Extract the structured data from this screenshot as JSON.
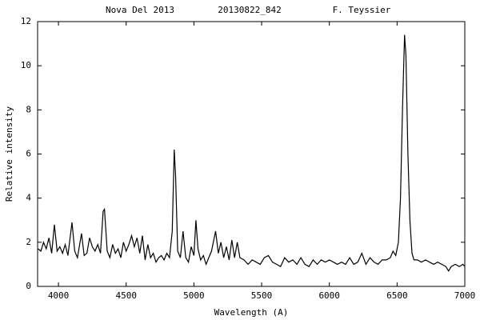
{
  "chart_data": {
    "type": "line",
    "title_parts": [
      "Nova Del 2013",
      "20130822_842",
      "F. Teyssier"
    ],
    "xlabel": "Wavelength (A)",
    "ylabel": "Relative intensity",
    "xlim": [
      3846,
      7000
    ],
    "ylim": [
      0,
      12
    ],
    "xticks": [
      4000,
      4500,
      5000,
      5500,
      6000,
      6500,
      7000
    ],
    "yticks": [
      0,
      2,
      4,
      6,
      8,
      10,
      12
    ],
    "grid": false,
    "x": [
      3850,
      3870,
      3890,
      3910,
      3930,
      3950,
      3970,
      3990,
      4010,
      4030,
      4050,
      4070,
      4100,
      4120,
      4140,
      4170,
      4190,
      4210,
      4230,
      4250,
      4270,
      4290,
      4310,
      4330,
      4340,
      4360,
      4380,
      4400,
      4420,
      4440,
      4460,
      4480,
      4500,
      4520,
      4540,
      4560,
      4580,
      4600,
      4620,
      4640,
      4660,
      4680,
      4700,
      4720,
      4740,
      4760,
      4780,
      4800,
      4820,
      4840,
      4855,
      4865,
      4880,
      4900,
      4920,
      4940,
      4960,
      4980,
      5000,
      5015,
      5030,
      5050,
      5070,
      5090,
      5110,
      5130,
      5160,
      5180,
      5200,
      5220,
      5240,
      5260,
      5280,
      5300,
      5320,
      5340,
      5370,
      5400,
      5430,
      5460,
      5490,
      5520,
      5550,
      5580,
      5610,
      5640,
      5670,
      5700,
      5730,
      5760,
      5790,
      5820,
      5850,
      5880,
      5910,
      5940,
      5970,
      6000,
      6030,
      6060,
      6090,
      6120,
      6150,
      6180,
      6210,
      6240,
      6270,
      6300,
      6330,
      6360,
      6390,
      6420,
      6450,
      6470,
      6490,
      6510,
      6525,
      6540,
      6555,
      6565,
      6580,
      6595,
      6610,
      6625,
      6650,
      6680,
      6710,
      6740,
      6770,
      6800,
      6830,
      6860,
      6880,
      6900,
      6930,
      6960,
      6985,
      7000
    ],
    "series": [
      {
        "color": "#000000",
        "values": [
          1.7,
          1.6,
          2.0,
          1.7,
          2.2,
          1.5,
          2.8,
          1.6,
          1.8,
          1.5,
          1.9,
          1.4,
          2.9,
          1.6,
          1.3,
          2.4,
          1.4,
          1.5,
          2.2,
          1.8,
          1.6,
          1.9,
          1.5,
          3.4,
          3.5,
          1.6,
          1.3,
          1.9,
          1.5,
          1.7,
          1.3,
          2.0,
          1.6,
          1.9,
          2.3,
          1.8,
          2.2,
          1.5,
          2.3,
          1.2,
          1.9,
          1.3,
          1.5,
          1.1,
          1.3,
          1.4,
          1.2,
          1.5,
          1.3,
          2.5,
          6.2,
          5.0,
          1.6,
          1.3,
          2.5,
          1.3,
          1.1,
          1.8,
          1.4,
          3.0,
          1.7,
          1.2,
          1.4,
          1.0,
          1.3,
          1.6,
          2.5,
          1.5,
          2.0,
          1.3,
          1.8,
          1.2,
          2.1,
          1.3,
          2.0,
          1.3,
          1.2,
          1.0,
          1.2,
          1.1,
          1.0,
          1.3,
          1.4,
          1.1,
          1.0,
          0.9,
          1.3,
          1.1,
          1.2,
          1.0,
          1.3,
          1.0,
          0.9,
          1.2,
          1.0,
          1.2,
          1.1,
          1.2,
          1.1,
          1.0,
          1.1,
          1.0,
          1.3,
          1.0,
          1.1,
          1.5,
          1.0,
          1.3,
          1.1,
          1.0,
          1.2,
          1.2,
          1.3,
          1.6,
          1.4,
          2.0,
          4.0,
          8.0,
          11.4,
          10.5,
          6.0,
          3.0,
          1.5,
          1.2,
          1.2,
          1.1,
          1.2,
          1.1,
          1.0,
          1.1,
          1.0,
          0.9,
          0.7,
          0.9,
          1.0,
          0.9,
          1.0,
          0.9
        ]
      }
    ]
  }
}
